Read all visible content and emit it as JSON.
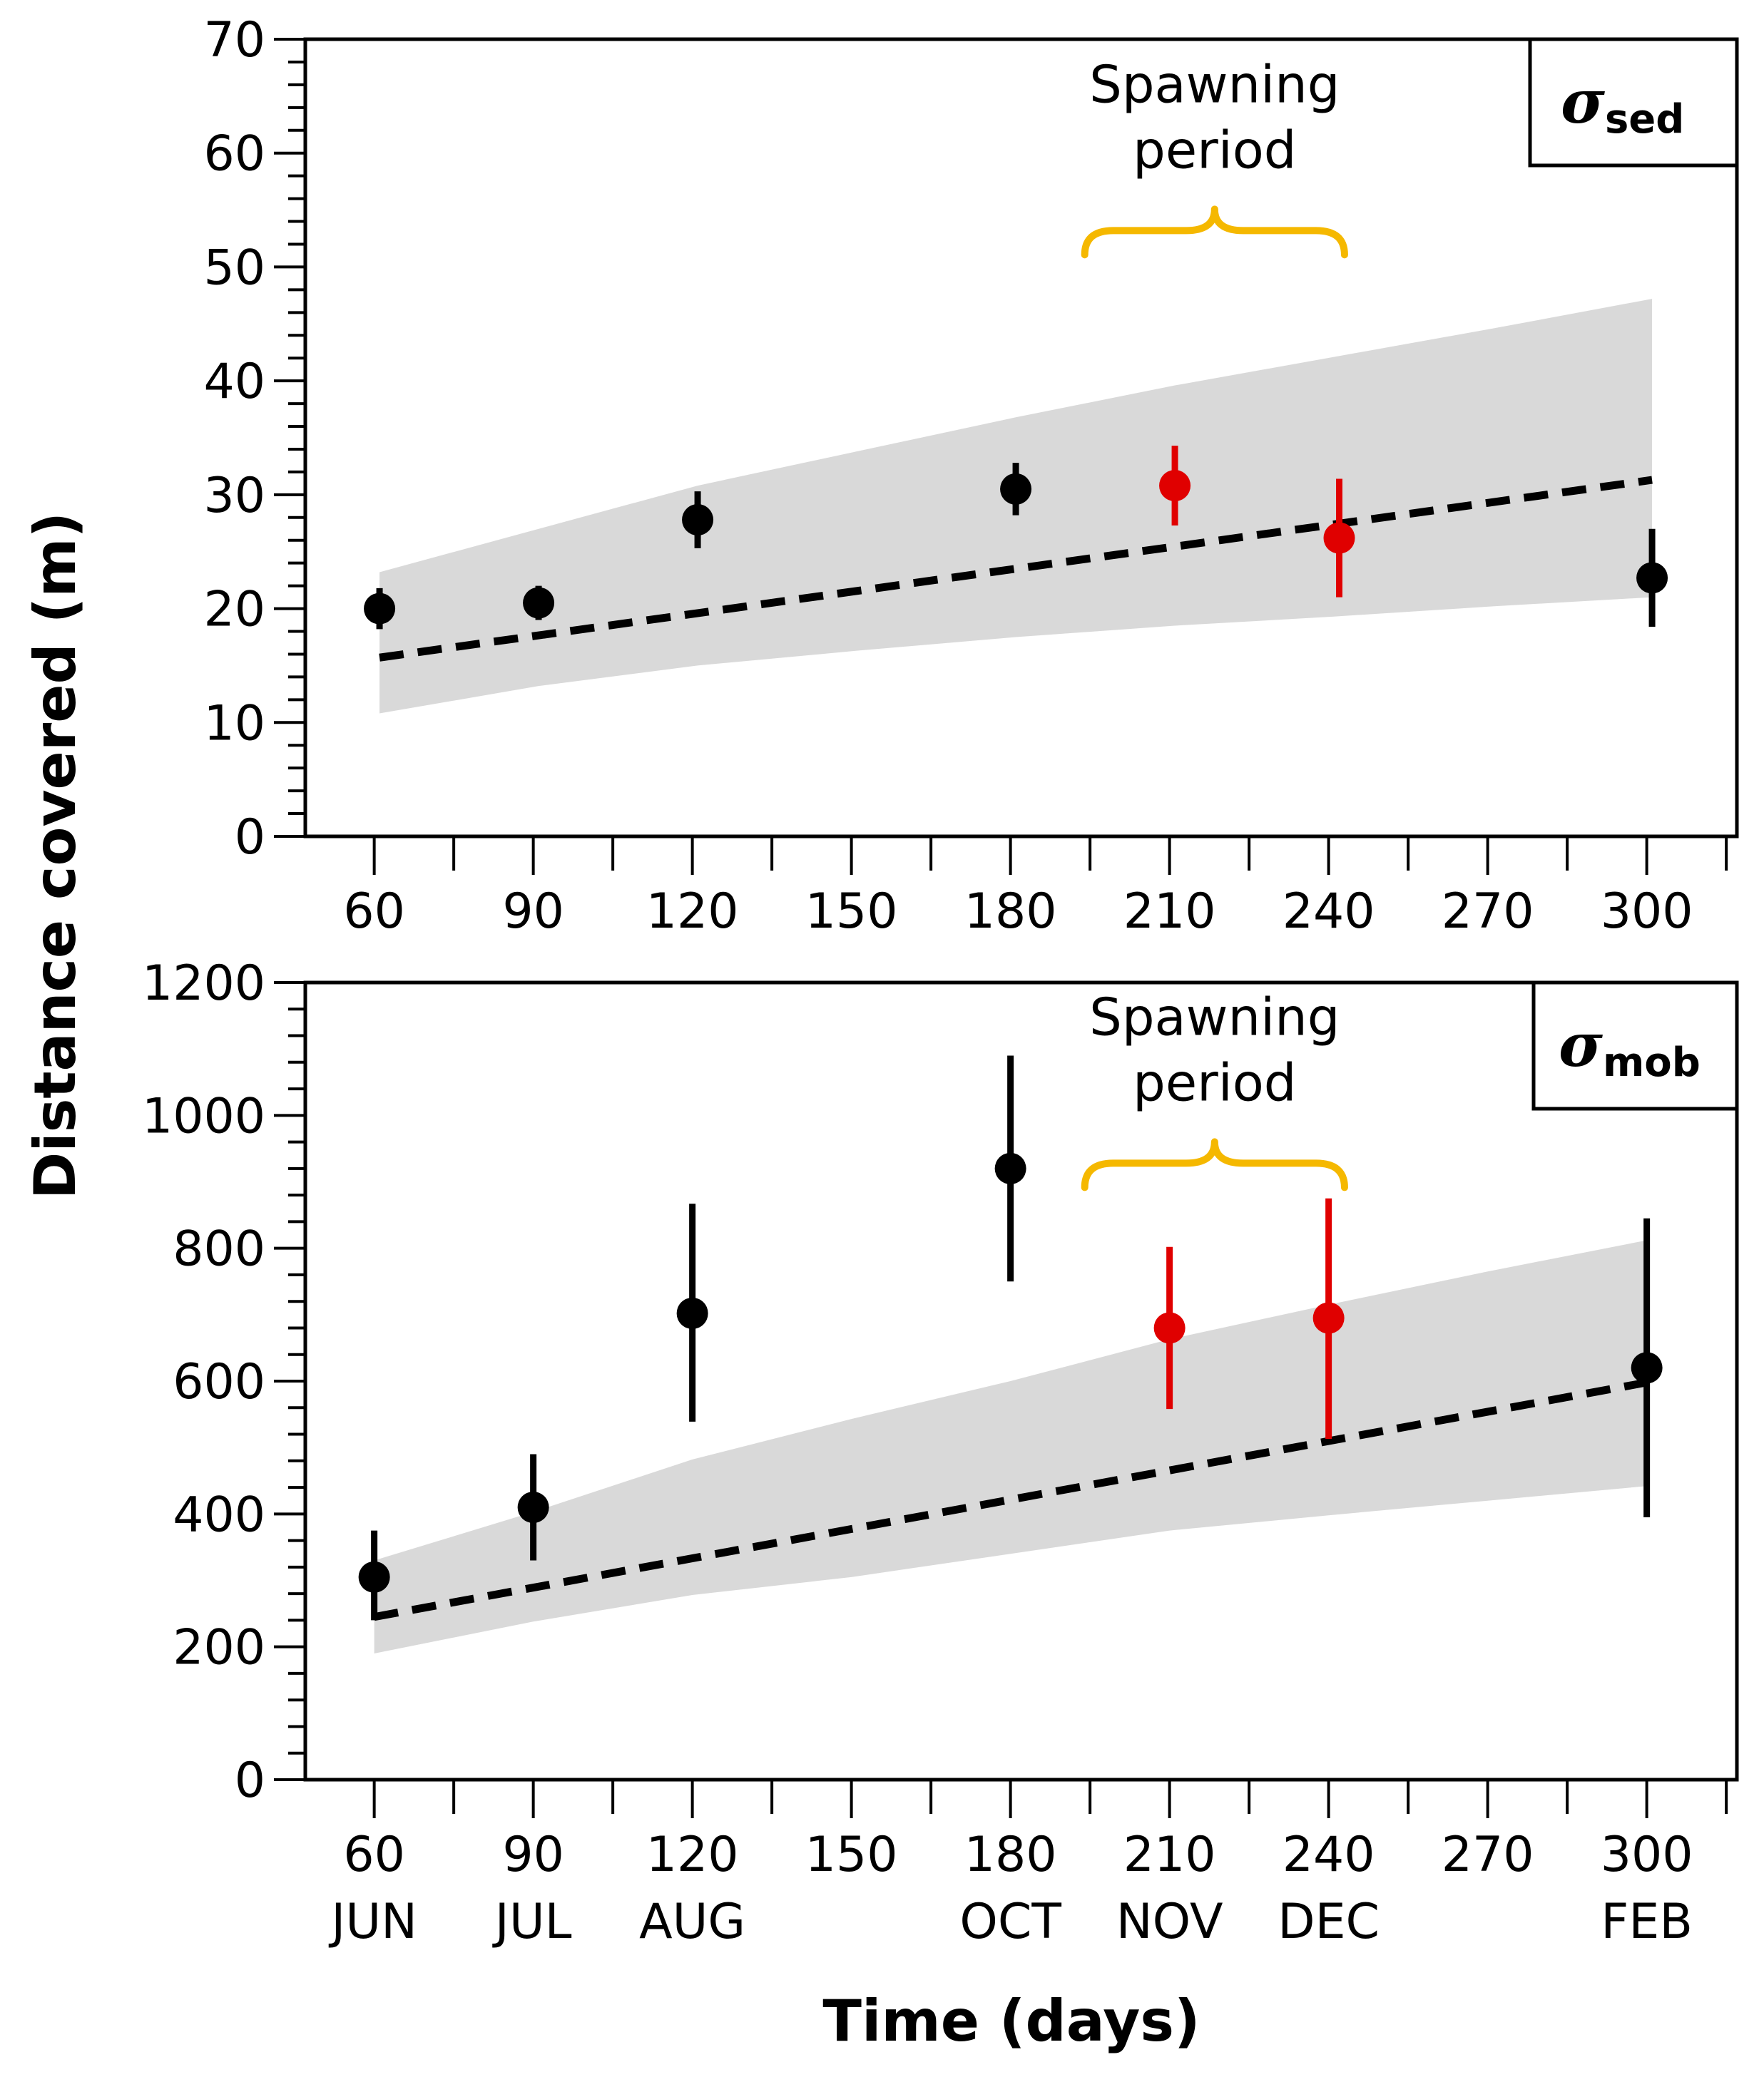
{
  "ylabel": "Distance covered (m)",
  "xlabel": "Time (days)",
  "chart_data": [
    {
      "type": "scatter",
      "panel": "top",
      "legend_symbol": "σ",
      "legend_subscript": "sed",
      "ylabel": "Distance covered (m)",
      "xlabel": "",
      "xlim": [
        47,
        317
      ],
      "ylim": [
        0,
        70
      ],
      "x_ticks": [
        60,
        90,
        120,
        150,
        180,
        210,
        240,
        270,
        300
      ],
      "x_tick_labels": [
        "60",
        "90",
        "120",
        "150",
        "180",
        "210",
        "240",
        "270",
        "300"
      ],
      "y_ticks": [
        0,
        10,
        20,
        30,
        40,
        50,
        60,
        70
      ],
      "y_tick_labels": [
        "0",
        "10",
        "20",
        "30",
        "40",
        "50",
        "60",
        "70"
      ],
      "annotation": {
        "line1": "Spawning",
        "line2": "period",
        "x_from": 194,
        "x_to": 243,
        "y_bracket": 53.2,
        "color": "#f5b800"
      },
      "points": [
        {
          "x": 61,
          "y": 20.0,
          "err_low": 1.8,
          "err_high": 1.8,
          "color": "#000000"
        },
        {
          "x": 91,
          "y": 20.5,
          "err_low": 1.5,
          "err_high": 1.5,
          "color": "#000000"
        },
        {
          "x": 121,
          "y": 27.8,
          "err_low": 2.5,
          "err_high": 2.5,
          "color": "#000000"
        },
        {
          "x": 181,
          "y": 30.5,
          "err_low": 2.3,
          "err_high": 2.3,
          "color": "#000000"
        },
        {
          "x": 211,
          "y": 30.8,
          "err_low": 3.5,
          "err_high": 3.5,
          "color": "#e00000"
        },
        {
          "x": 242,
          "y": 26.2,
          "err_low": 5.2,
          "err_high": 5.2,
          "color": "#e00000"
        },
        {
          "x": 301,
          "y": 22.7,
          "err_low": 4.3,
          "err_high": 4.3,
          "color": "#000000"
        }
      ],
      "fit_line": {
        "x": [
          61,
          301
        ],
        "y": [
          15.7,
          31.3
        ],
        "style": "dashed"
      },
      "band": {
        "x": [
          61,
          91,
          121,
          151,
          181,
          211,
          241,
          271,
          301
        ],
        "lower": [
          10.8,
          13.2,
          15.0,
          16.3,
          17.5,
          18.5,
          19.3,
          20.2,
          21.0
        ],
        "upper": [
          23.2,
          27.0,
          30.8,
          33.8,
          36.8,
          39.6,
          42.1,
          44.6,
          47.2
        ],
        "color": "#d9d9d9"
      }
    },
    {
      "type": "scatter",
      "panel": "bottom",
      "legend_symbol": "σ",
      "legend_subscript": "mob",
      "ylabel": "Distance covered (m)",
      "xlabel": "Time (days)",
      "xlim": [
        47,
        317
      ],
      "ylim": [
        0,
        1200
      ],
      "x_ticks": [
        60,
        90,
        120,
        150,
        180,
        210,
        240,
        270,
        300
      ],
      "x_tick_labels": [
        "60",
        "90",
        "120",
        "150",
        "180",
        "210",
        "240",
        "270",
        "300"
      ],
      "month_labels": [
        {
          "x": 60,
          "label": "JUN"
        },
        {
          "x": 90,
          "label": "JUL"
        },
        {
          "x": 120,
          "label": "AUG"
        },
        {
          "x": 180,
          "label": "OCT"
        },
        {
          "x": 210,
          "label": "NOV"
        },
        {
          "x": 240,
          "label": "DEC"
        },
        {
          "x": 300,
          "label": "FEB"
        }
      ],
      "y_ticks": [
        0,
        200,
        400,
        600,
        800,
        1000,
        1200
      ],
      "y_tick_labels": [
        "0",
        "200",
        "400",
        "600",
        "800",
        "1000",
        "1200"
      ],
      "annotation": {
        "line1": "Spawning",
        "line2": "period",
        "x_from": 194,
        "x_to": 243,
        "y_bracket": 928,
        "color": "#f5b800"
      },
      "points": [
        {
          "x": 60,
          "y": 305,
          "err_low": 65,
          "err_high": 70,
          "color": "#000000"
        },
        {
          "x": 90,
          "y": 410,
          "err_low": 80,
          "err_high": 80,
          "color": "#000000"
        },
        {
          "x": 120,
          "y": 702,
          "err_low": 163,
          "err_high": 165,
          "color": "#000000"
        },
        {
          "x": 180,
          "y": 920,
          "err_low": 170,
          "err_high": 170,
          "color": "#000000"
        },
        {
          "x": 210,
          "y": 680,
          "err_low": 122,
          "err_high": 122,
          "color": "#e00000"
        },
        {
          "x": 240,
          "y": 695,
          "err_low": 182,
          "err_high": 180,
          "color": "#e00000"
        },
        {
          "x": 300,
          "y": 620,
          "err_low": 225,
          "err_high": 225,
          "color": "#000000"
        }
      ],
      "fit_line": {
        "x": [
          60,
          300
        ],
        "y": [
          245,
          598
        ],
        "style": "dashed"
      },
      "band": {
        "x": [
          60,
          90,
          120,
          150,
          180,
          210,
          240,
          270,
          300
        ],
        "lower": [
          190,
          238,
          278,
          305,
          340,
          375,
          398,
          420,
          442
        ],
        "upper": [
          330,
          403,
          482,
          543,
          600,
          663,
          715,
          765,
          812
        ],
        "color": "#d9d9d9"
      }
    }
  ]
}
